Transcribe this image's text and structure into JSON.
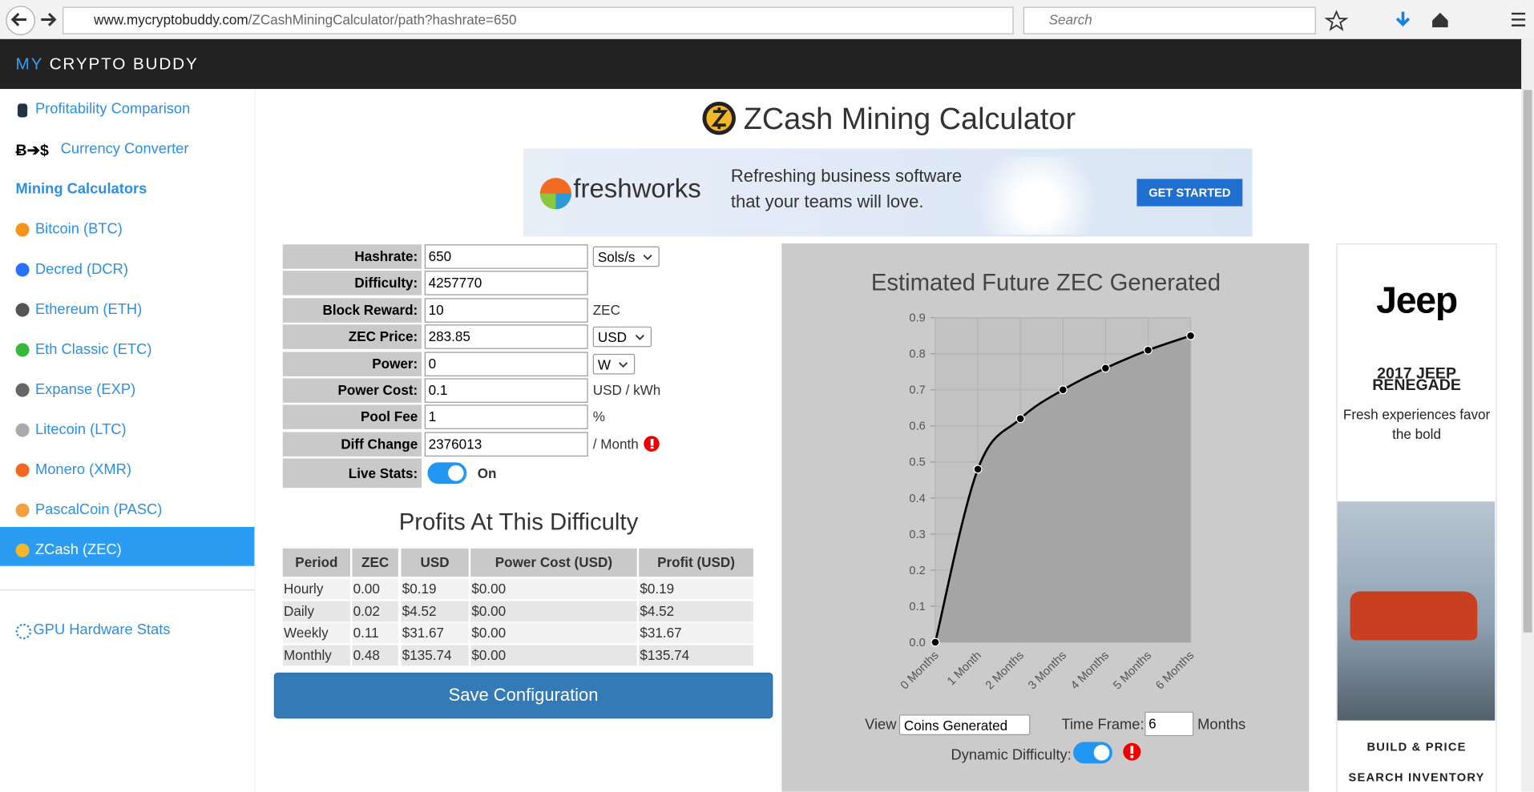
{
  "browser": {
    "url_host": "www.mycryptobuddy.com",
    "url_path": "/ZCashMiningCalculator/path?hashrate=650",
    "search": "Search"
  },
  "header": {
    "brand_a": "MY",
    "brand_b": "CRYPTO BUDDY"
  },
  "sidebar": {
    "top": [
      {
        "icon": "",
        "label": "Profitability Comparison"
      },
      {
        "icon": "Ƀ➔$",
        "label": "Currency Converter"
      }
    ],
    "section": "Mining Calculators",
    "coins": [
      "Bitcoin (BTC)",
      "Decred (DCR)",
      "Ethereum (ETH)",
      "Eth Classic (ETC)",
      "Expanse (EXP)",
      "Litecoin (LTC)",
      "Monero (XMR)",
      "PascalCoin (PASC)",
      "ZCash (ZEC)"
    ],
    "gpu": "GPU Hardware Stats"
  },
  "title": "ZCash Mining Calculator",
  "ad": {
    "brand": "freshworks",
    "line1": "Refreshing business software",
    "line2": "that your teams will love.",
    "button": "GET STARTED"
  },
  "form": {
    "rows": [
      {
        "label": "Hashrate:",
        "value": "650",
        "select": "Sols/s"
      },
      {
        "label": "Difficulty:",
        "value": "4257770"
      },
      {
        "label": "Block Reward:",
        "value": "10",
        "unit": "ZEC"
      },
      {
        "label": "ZEC Price:",
        "value": "283.85",
        "select": "USD"
      },
      {
        "label": "Power:",
        "value": "0",
        "select": "W"
      },
      {
        "label": "Power Cost:",
        "value": "0.1",
        "unit": "USD / kWh"
      },
      {
        "label": "Pool Fee",
        "value": "1",
        "unit": "%"
      },
      {
        "label": "Diff Change",
        "value": "2376013",
        "unit": "/ Month"
      }
    ],
    "live_label": "Live Stats:",
    "live_state": "On"
  },
  "profits": {
    "title": "Profits At This Difficulty",
    "headers": [
      "Period",
      "ZEC",
      "USD",
      "Power Cost (USD)",
      "Profit (USD)"
    ],
    "rows": [
      [
        "Hourly",
        "0.00",
        "$0.19",
        "$0.00",
        "$0.19"
      ],
      [
        "Daily",
        "0.02",
        "$4.52",
        "$0.00",
        "$4.52"
      ],
      [
        "Weekly",
        "0.11",
        "$31.67",
        "$0.00",
        "$31.67"
      ],
      [
        "Monthly",
        "0.48",
        "$135.74",
        "$0.00",
        "$135.74"
      ]
    ]
  },
  "save": "Save Configuration",
  "chart_data": {
    "type": "line",
    "title": "Estimated Future ZEC Generated",
    "categories": [
      "0 Months",
      "1 Month",
      "2 Months",
      "3 Months",
      "4 Months",
      "5 Months",
      "6 Months"
    ],
    "values": [
      0,
      0.48,
      0.62,
      0.7,
      0.76,
      0.81,
      0.85
    ],
    "color": "#000000",
    "ylim": [
      0,
      0.9
    ],
    "yticks": [
      {
        "value": 0,
        "label": "0.0"
      },
      0.1,
      0.2,
      0.3,
      0.4,
      0.5,
      0.6,
      0.7,
      0.8,
      0.9
    ],
    "grid": true
  },
  "controls": {
    "view_label": "View",
    "view_value": "Coins Generated",
    "timeframe_label": "Time Frame:",
    "timeframe_value": "6",
    "timeframe_unit": "Months",
    "dynamic_label": "Dynamic Difficulty:"
  },
  "right_ad": {
    "logo": "Jeep",
    "line1": "2017 JEEP",
    "line2": "RENEGADE",
    "tag1": "Fresh experiences favor",
    "tag2": "the bold",
    "cta1": "BUILD & PRICE",
    "cta2": "SEARCH INVENTORY"
  }
}
